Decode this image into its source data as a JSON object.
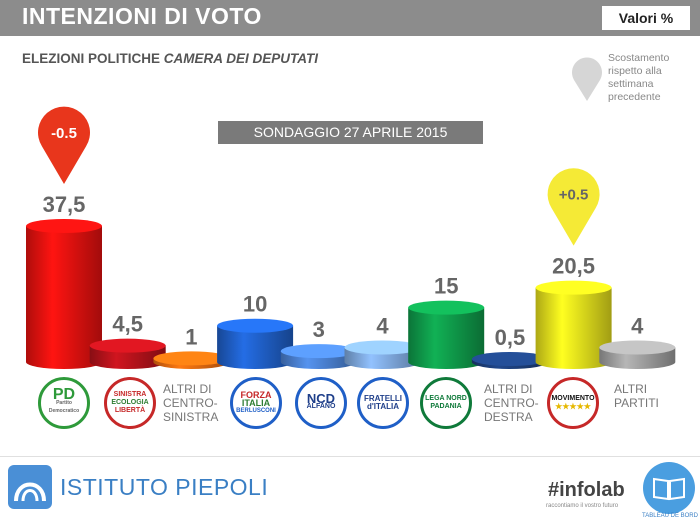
{
  "header": {
    "title": "INTENZIONI DI VOTO",
    "unit": "Valori %"
  },
  "subtitle": {
    "plain": "ELEZIONI POLITICHE",
    "italic": "CAMERA DEI DEPUTATI"
  },
  "legend": {
    "text": "Scostamento rispetto alla settimana precedente"
  },
  "banner": {
    "text": "SONDAGGIO 27 APRILE 2015"
  },
  "chart_data": {
    "type": "bar",
    "categories": [
      "PD",
      "SEL",
      "ALTRI DI CENTRO-SINISTRA",
      "FORZA ITALIA",
      "NCD",
      "FRATELLI D'ITALIA",
      "LEGA NORD",
      "ALTRI DI CENTRO-DESTRA",
      "MOVIMENTO 5 STELLE",
      "ALTRI PARTITI"
    ],
    "values": [
      37.5,
      4.5,
      1,
      10,
      3,
      4,
      15,
      0.5,
      20.5,
      4
    ],
    "value_labels": [
      "37,5",
      "4,5",
      "1",
      "10",
      "3",
      "4",
      "15",
      "0,5",
      "20,5",
      "4"
    ],
    "colors": [
      "#e8110f",
      "#b5121b",
      "#e86a10",
      "#1f5fc7",
      "#4a80d0",
      "#7fa9df",
      "#0f9a4a",
      "#1d3f7a",
      "#e6e01c",
      "#9e9e9e"
    ],
    "changes": [
      {
        "category": "PD",
        "label": "-0.5",
        "color": "#e8361c"
      },
      {
        "category": "MOVIMENTO 5 STELLE",
        "label": "+0.5",
        "color": "#f5ea36"
      }
    ],
    "title": "SONDAGGIO 27 APRILE 2015",
    "ylim": [
      0,
      40
    ]
  },
  "parties": {
    "pd": {
      "line1": "PD",
      "line2": "Partito Democratico"
    },
    "sel": {
      "line1": "SINISTRA",
      "line2": "ECOLOGIA",
      "line3": "LIBERTÀ"
    },
    "altri_cs": {
      "line1": "ALTRI DI",
      "line2": "CENTRO-",
      "line3": "SINISTRA"
    },
    "fi": {
      "line1": "FORZA",
      "line2": "ITALIA",
      "line3": "BERLUSCONI"
    },
    "ncd": {
      "line1": "NCD",
      "line2": "ALFANO"
    },
    "fdi": {
      "line1": "FRATELLI",
      "line2": "d'ITALIA"
    },
    "lega": {
      "line1": "LEGA NORD",
      "line2": "PADANIA"
    },
    "altri_cd": {
      "line1": "ALTRI DI",
      "line2": "CENTRO-",
      "line3": "DESTRA"
    },
    "m5s": {
      "line1": "MOVIMENTO",
      "line2": "★★★★★"
    },
    "altri": {
      "line1": "ALTRI",
      "line2": "PARTITI"
    }
  },
  "footer": {
    "piepoli": "ISTITUTO PIEPOLI",
    "infolab": "#infolab",
    "infolab_sub": "raccontiamo il vostro futuro",
    "tableau": "TABLEAU DE BORD"
  }
}
